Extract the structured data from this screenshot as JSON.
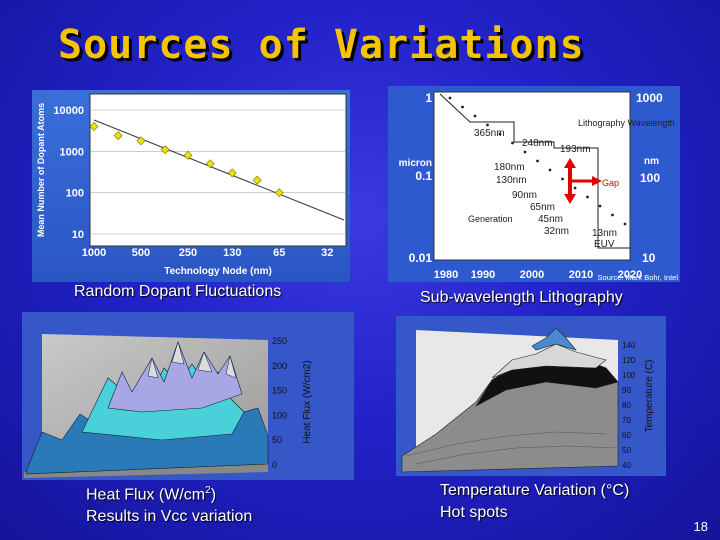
{
  "slide": {
    "title": "Sources of Variations",
    "page_number": "18"
  },
  "captions": {
    "dopant": "Random Dopant Fluctuations",
    "litho": "Sub-wavelength Lithography",
    "heat_line1_prefix": "Heat Flux (W/cm",
    "heat_line1_sup": "2",
    "heat_line1_suffix": ")",
    "heat_line2": "Results in Vcc variation",
    "temp_line1": "Temperature Variation (°C)",
    "temp_line2": "Hot spots"
  },
  "dopant_chart": {
    "ylabel": "Mean Number of Dopant Atoms",
    "xlabel": "Technology Node (nm)",
    "y_ticks": [
      "10000",
      "1000",
      "100",
      "10"
    ],
    "x_ticks": [
      "1000",
      "500",
      "250",
      "130",
      "65",
      "32"
    ]
  },
  "litho_chart": {
    "left_top": "1",
    "left_unit": "micron",
    "left_mid": "0.1",
    "left_bottom": "0.01",
    "right_top": "1000",
    "right_unit": "nm",
    "right_mid": "100",
    "right_bottom": "10",
    "x_ticks": [
      "1980",
      "1990",
      "2000",
      "2010",
      "2020"
    ],
    "labels": {
      "wavelength": "Lithography Wavelength",
      "w365": "365nm",
      "w248": "248nm",
      "w193": "193nm",
      "gap": "Gap",
      "generation": "Generation",
      "g180": "180nm",
      "g130": "130nm",
      "g90": "90nm",
      "g65": "65nm",
      "g45": "45nm",
      "g32": "32nm",
      "w13": "13nm",
      "euv": "EUV"
    },
    "source": "Source: Mark Bohr, Intel"
  },
  "heat_chart": {
    "zlabel": "Heat Flux (W/cm2)",
    "z_ticks": [
      "250",
      "200",
      "150",
      "100",
      "50",
      "0"
    ]
  },
  "temp_chart": {
    "zlabel": "Temperature (C)",
    "z_ticks": [
      "140",
      "120",
      "100",
      "90",
      "80",
      "70",
      "60",
      "50",
      "40"
    ]
  },
  "chart_data": [
    {
      "type": "scatter",
      "title": "",
      "xlabel": "Technology Node (nm)",
      "ylabel": "Mean Number of Dopant Atoms",
      "y_scale": "log",
      "ylim": [
        10,
        10000
      ],
      "x": [
        1000,
        700,
        500,
        350,
        250,
        180,
        130,
        90,
        65
      ],
      "y": [
        4000,
        2400,
        1800,
        1100,
        800,
        500,
        300,
        200,
        100
      ]
    }
  ]
}
